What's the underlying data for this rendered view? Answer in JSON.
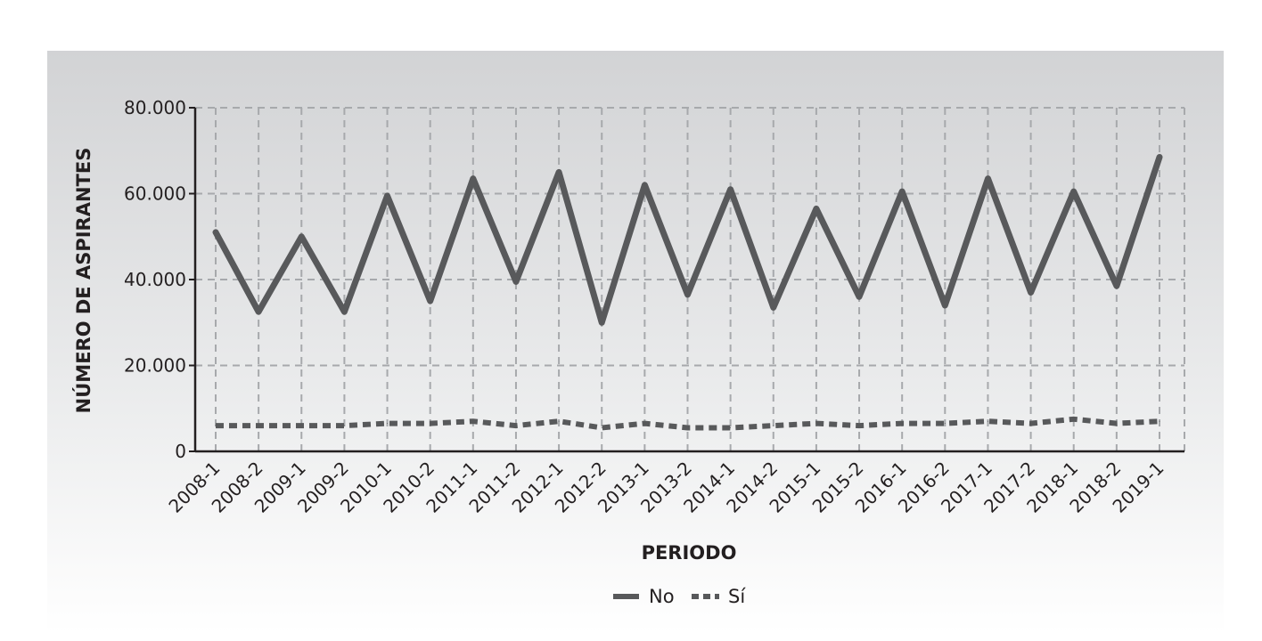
{
  "chart_data": {
    "type": "line",
    "title": "",
    "xlabel": "PERIODO",
    "ylabel": "NÚMERO DE ASPIRANTES",
    "ylim": [
      0,
      80000
    ],
    "yticks": [
      "0",
      "20.000",
      "40.000",
      "60.000",
      "80.000"
    ],
    "ytick_values": [
      0,
      20000,
      40000,
      60000,
      80000
    ],
    "grid": true,
    "legend_position": "bottom-center",
    "categories": [
      "2008-1",
      "2008-2",
      "2009-1",
      "2009-2",
      "2010-1",
      "2010-2",
      "2011-1",
      "2011-2",
      "2012-1",
      "2012-2",
      "2013-1",
      "2013-2",
      "2014-1",
      "2014-2",
      "2015-1",
      "2015-2",
      "2016-1",
      "2016-2",
      "2017-1",
      "2017-2",
      "2018-1",
      "2018-2",
      "2019-1"
    ],
    "series": [
      {
        "name": "No",
        "style": "solid",
        "color": "#58595b",
        "values": [
          51000,
          32500,
          50000,
          32500,
          59500,
          35000,
          63500,
          39500,
          65000,
          30000,
          62000,
          36500,
          61000,
          33500,
          56500,
          36000,
          60500,
          34000,
          63500,
          37000,
          60500,
          38500,
          68500
        ]
      },
      {
        "name": "Sí",
        "style": "dashed",
        "color": "#58595b",
        "values": [
          6000,
          6000,
          6000,
          6000,
          6500,
          6500,
          7000,
          6000,
          7000,
          5500,
          6500,
          5500,
          5500,
          6000,
          6500,
          6000,
          6500,
          6500,
          7000,
          6500,
          7500,
          6500,
          7000
        ]
      }
    ]
  }
}
